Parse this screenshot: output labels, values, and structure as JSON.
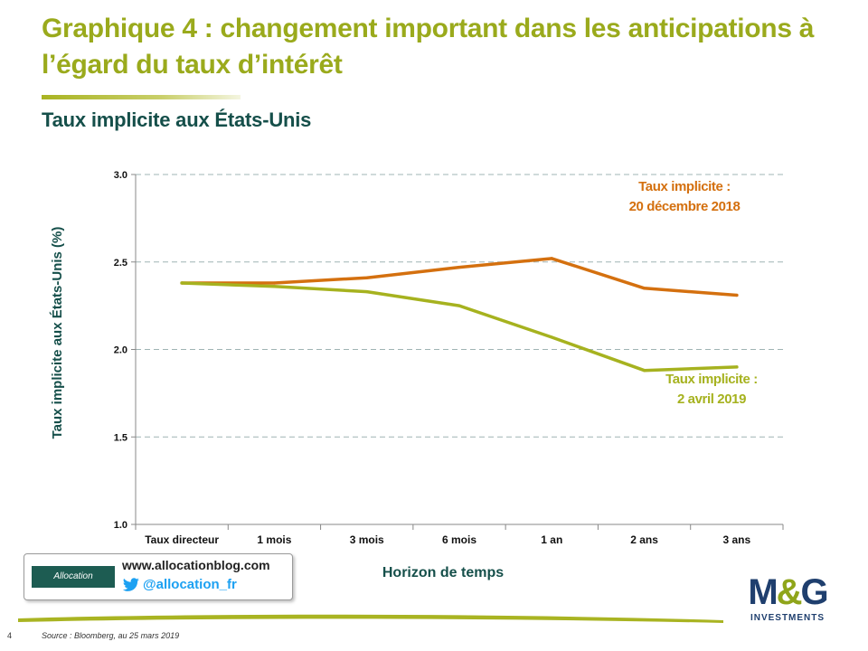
{
  "slide": {
    "title": "Graphique 4 : changement important dans les anticipations à l’égard du taux d’intérêt",
    "subtitle": "Taux implicite aux États-Unis",
    "page_number": "4",
    "source": "Source : Bloomberg, au 25 mars 2019"
  },
  "promo": {
    "logo_text": "Allocation",
    "url": "www.allocationblog.com",
    "twitter": "@allocation_fr"
  },
  "brand": {
    "name_left": "M",
    "name_amp": "&",
    "name_right": "G",
    "tagline": "INVESTMENTS"
  },
  "colors": {
    "title": "#9aaa1c",
    "subtitle": "#154f4a",
    "series_dec": "#d4700f",
    "series_apr": "#a6b21f",
    "grid": "#9fb4b4"
  },
  "chart_data": {
    "type": "line",
    "xlabel": "Horizon de temps",
    "ylabel": "Taux implicite aux États-Unis (%)",
    "categories": [
      "Taux directeur",
      "1 mois",
      "3 mois",
      "6 mois",
      "1 an",
      "2 ans",
      "3 ans"
    ],
    "ylim": [
      1.0,
      3.0
    ],
    "yticks": [
      "3.0",
      "2.5",
      "2.0",
      "1.5",
      "1.0"
    ],
    "ytick_values": [
      3.0,
      2.5,
      2.0,
      1.5,
      1.0
    ],
    "grid": true,
    "series": [
      {
        "name": "Taux implicite : 20 décembre 2018",
        "label_lines": [
          "Taux implicite :",
          "20 décembre 2018"
        ],
        "color": "#d4700f",
        "values": [
          2.38,
          2.38,
          2.41,
          2.47,
          2.52,
          2.35,
          2.31
        ]
      },
      {
        "name": "Taux implicite : 2 avril 2019",
        "label_lines": [
          "Taux implicite :",
          "2 avril 2019"
        ],
        "color": "#a6b21f",
        "values": [
          2.38,
          2.36,
          2.33,
          2.25,
          2.07,
          1.88,
          1.9
        ]
      }
    ]
  }
}
